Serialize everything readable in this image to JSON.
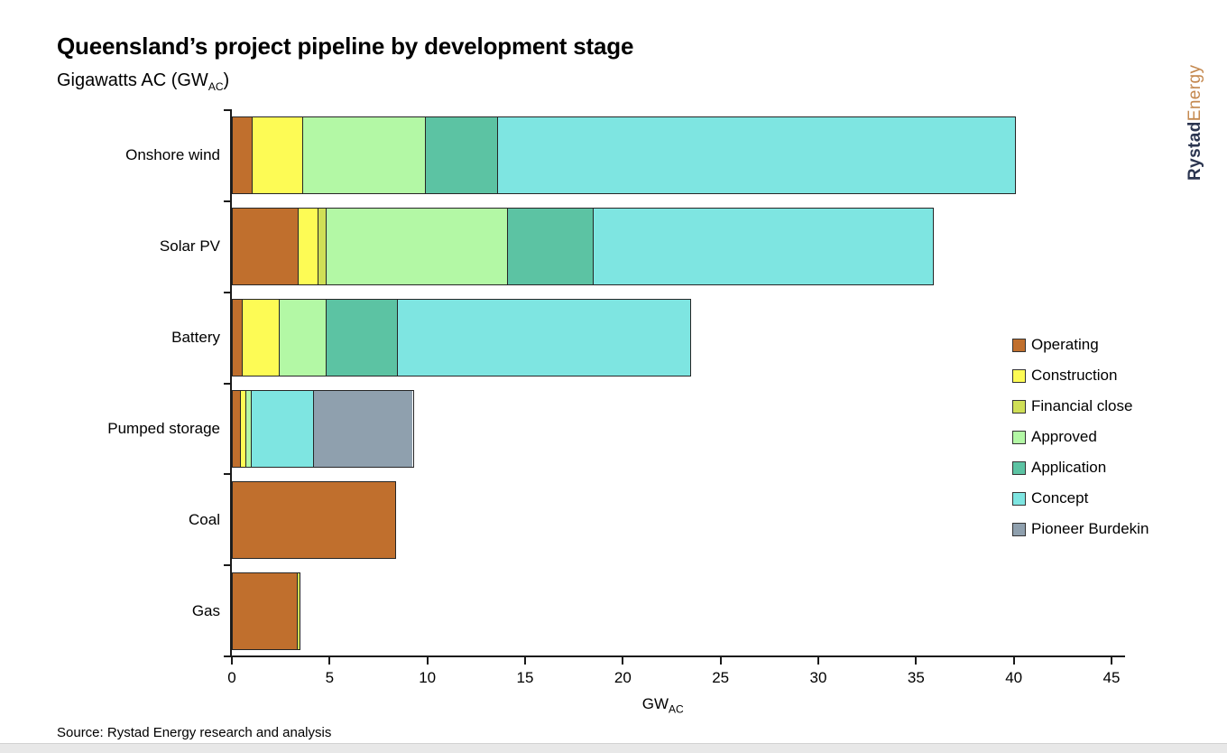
{
  "header": {
    "title": "Queensland’s project pipeline by development stage",
    "subtitle_prefix": "Gigawatts AC (GW",
    "subtitle_sub": "AC",
    "subtitle_suffix": ")"
  },
  "logo": {
    "part1": "Rystad",
    "part2": "Energy",
    "part1_color": "#2b3550",
    "part2_color": "#c4884e"
  },
  "footer": {
    "source": "Source: Rystad Energy research and analysis"
  },
  "chart_data": {
    "type": "bar",
    "orientation": "horizontal",
    "stacked": true,
    "grid": false,
    "legend_position": "right",
    "categories": [
      "Onshore wind",
      "Solar PV",
      "Battery",
      "Pumped storage",
      "Coal",
      "Gas"
    ],
    "series": [
      {
        "name": "Operating",
        "color": "#c06f2d",
        "values": [
          1.0,
          3.4,
          0.5,
          0.4,
          8.4,
          3.4
        ]
      },
      {
        "name": "Construction",
        "color": "#fdfb55",
        "values": [
          2.6,
          1.0,
          1.9,
          0.3,
          0,
          0
        ]
      },
      {
        "name": "Financial close",
        "color": "#cfdf56",
        "values": [
          0,
          0.4,
          0,
          0,
          0,
          0.1
        ]
      },
      {
        "name": "Approved",
        "color": "#b3f8a5",
        "values": [
          6.3,
          9.3,
          2.4,
          0.3,
          0,
          0
        ]
      },
      {
        "name": "Application",
        "color": "#5cc3a3",
        "values": [
          3.7,
          4.4,
          3.7,
          0,
          0,
          0
        ]
      },
      {
        "name": "Concept",
        "color": "#7ee5e1",
        "values": [
          26.5,
          17.4,
          15.0,
          3.2,
          0,
          0
        ]
      },
      {
        "name": "Pioneer Burdekin",
        "color": "#8fa0ae",
        "values": [
          0,
          0,
          0,
          5.1,
          0,
          0
        ]
      }
    ],
    "totals": [
      40.1,
      35.9,
      23.5,
      9.3,
      8.4,
      3.5
    ],
    "xlim": [
      0,
      45
    ],
    "x_ticks": [
      0,
      5,
      10,
      15,
      20,
      25,
      30,
      35,
      40,
      45
    ],
    "xlabel_prefix": "GW",
    "xlabel_sub": "AC"
  }
}
